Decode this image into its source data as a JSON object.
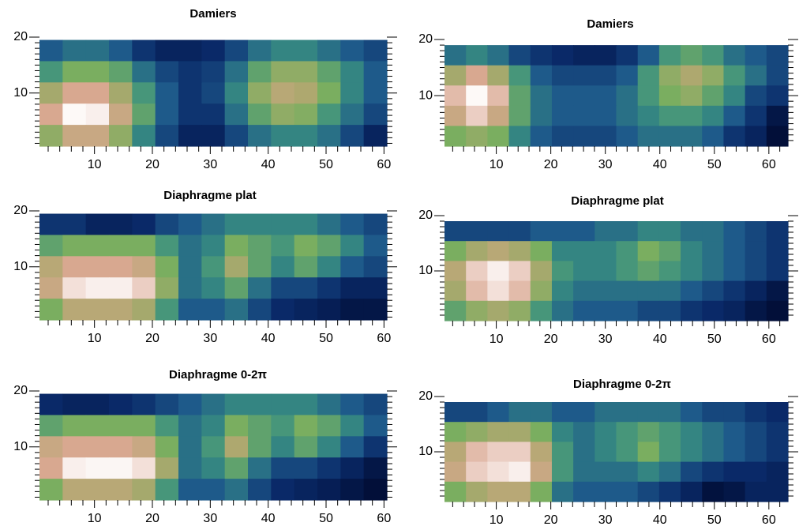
{
  "chart_data": [
    {
      "type": "heatmap",
      "title": "Damiers",
      "x": [
        2.5,
        6.5,
        10.5,
        14.5,
        18.5,
        22.5,
        26.5,
        30.5,
        34.5,
        38.5,
        42.5,
        46.5,
        50.5,
        54.5,
        58.5
      ],
      "y": [
        17.6,
        13.8,
        10,
        6.2,
        2.4
      ],
      "z": [
        [
          0.25,
          0.3,
          0.3,
          0.25,
          0.15,
          0.1,
          0.1,
          0.12,
          0.2,
          0.3,
          0.35,
          0.35,
          0.3,
          0.25,
          0.2
        ],
        [
          0.4,
          0.5,
          0.5,
          0.45,
          0.3,
          0.2,
          0.15,
          0.18,
          0.3,
          0.45,
          0.55,
          0.55,
          0.45,
          0.35,
          0.25
        ],
        [
          0.6,
          0.75,
          0.75,
          0.6,
          0.4,
          0.25,
          0.15,
          0.2,
          0.35,
          0.55,
          0.65,
          0.62,
          0.5,
          0.35,
          0.25
        ],
        [
          0.75,
          0.98,
          0.95,
          0.7,
          0.45,
          0.25,
          0.15,
          0.15,
          0.3,
          0.45,
          0.55,
          0.52,
          0.4,
          0.3,
          0.2
        ],
        [
          0.55,
          0.7,
          0.7,
          0.55,
          0.35,
          0.2,
          0.1,
          0.1,
          0.2,
          0.3,
          0.35,
          0.35,
          0.3,
          0.2,
          0.1
        ]
      ],
      "zlim": [
        0,
        1
      ],
      "colorscale": [
        "#000a30",
        "#0a2a6a",
        "#1e5a8a",
        "#3a9080",
        "#7aae60",
        "#b0a870",
        "#d8a890",
        "#f0d8d0",
        "#ffffff"
      ],
      "xlim": [
        0.5,
        60.5
      ],
      "ylim": [
        0.5,
        20
      ],
      "xticks": [
        10,
        20,
        30,
        40,
        50,
        60
      ],
      "yticks": [
        10,
        20
      ],
      "xminor": [
        2,
        4,
        6,
        8,
        12,
        14,
        16,
        18,
        22,
        24,
        26,
        28,
        32,
        34,
        36,
        38,
        42,
        44,
        46,
        48,
        52,
        54,
        56,
        58
      ],
      "yminor": [
        1,
        2,
        3,
        4,
        5,
        6,
        7,
        8,
        9,
        11,
        12,
        13,
        14,
        15,
        16,
        17,
        18,
        19
      ]
    },
    {
      "type": "heatmap",
      "title": "Damiers",
      "x": [
        2.47,
        6.41,
        10.34,
        14.28,
        18.22,
        22.16,
        26.09,
        30.03,
        33.97,
        37.91,
        41.84,
        45.78,
        49.72,
        53.66,
        57.59,
        61.53
      ],
      "y": [
        17.2,
        13.6,
        10,
        6.4,
        2.8
      ],
      "z": [
        [
          0.3,
          0.35,
          0.3,
          0.2,
          0.15,
          0.12,
          0.1,
          0.1,
          0.15,
          0.25,
          0.4,
          0.45,
          0.4,
          0.3,
          0.25,
          0.2
        ],
        [
          0.6,
          0.75,
          0.6,
          0.4,
          0.25,
          0.2,
          0.2,
          0.2,
          0.25,
          0.4,
          0.55,
          0.62,
          0.55,
          0.4,
          0.3,
          0.2
        ],
        [
          0.8,
          0.98,
          0.8,
          0.45,
          0.3,
          0.25,
          0.25,
          0.25,
          0.3,
          0.4,
          0.5,
          0.55,
          0.45,
          0.35,
          0.2,
          0.15
        ],
        [
          0.7,
          0.85,
          0.7,
          0.45,
          0.3,
          0.25,
          0.25,
          0.25,
          0.3,
          0.35,
          0.4,
          0.4,
          0.35,
          0.25,
          0.15,
          0.05
        ],
        [
          0.5,
          0.55,
          0.5,
          0.35,
          0.25,
          0.2,
          0.2,
          0.2,
          0.25,
          0.3,
          0.3,
          0.3,
          0.25,
          0.15,
          0.1,
          0.02
        ]
      ],
      "zlim": [
        0,
        1
      ],
      "colorscale": [
        "#000a30",
        "#0a2a6a",
        "#1e5a8a",
        "#3a9080",
        "#7aae60",
        "#b0a870",
        "#d8a890",
        "#f0d8d0",
        "#ffffff"
      ],
      "xlim": [
        0.5,
        63.5
      ],
      "ylim": [
        1,
        20
      ],
      "xticks": [
        10,
        20,
        30,
        40,
        50,
        60
      ],
      "yticks": [
        10,
        20
      ],
      "xminor": [
        2,
        4,
        6,
        8,
        12,
        14,
        16,
        18,
        22,
        24,
        26,
        28,
        32,
        34,
        36,
        38,
        42,
        44,
        46,
        48,
        52,
        54,
        56,
        58,
        62
      ],
      "yminor": [
        2,
        3,
        4,
        5,
        6,
        7,
        8,
        9,
        11,
        12,
        13,
        14,
        15,
        16,
        17,
        18,
        19
      ]
    },
    {
      "type": "heatmap",
      "title": "Diaphragme plat",
      "x": [
        2.5,
        6.5,
        10.5,
        14.5,
        18.5,
        22.5,
        26.5,
        30.5,
        34.5,
        38.5,
        42.5,
        46.5,
        50.5,
        54.5,
        58.5
      ],
      "y": [
        17.6,
        13.8,
        10,
        6.2,
        2.4
      ],
      "z": [
        [
          0.15,
          0.15,
          0.1,
          0.1,
          0.12,
          0.2,
          0.25,
          0.3,
          0.35,
          0.35,
          0.35,
          0.35,
          0.3,
          0.25,
          0.2
        ],
        [
          0.45,
          0.5,
          0.5,
          0.5,
          0.5,
          0.4,
          0.3,
          0.35,
          0.5,
          0.45,
          0.4,
          0.5,
          0.45,
          0.35,
          0.25
        ],
        [
          0.65,
          0.75,
          0.75,
          0.75,
          0.7,
          0.5,
          0.3,
          0.4,
          0.6,
          0.45,
          0.35,
          0.45,
          0.35,
          0.25,
          0.2
        ],
        [
          0.7,
          0.9,
          0.95,
          0.95,
          0.85,
          0.55,
          0.3,
          0.35,
          0.45,
          0.3,
          0.2,
          0.2,
          0.15,
          0.1,
          0.1
        ],
        [
          0.5,
          0.65,
          0.65,
          0.65,
          0.6,
          0.4,
          0.25,
          0.25,
          0.3,
          0.2,
          0.12,
          0.1,
          0.08,
          0.05,
          0.05
        ]
      ],
      "zlim": [
        0,
        1
      ],
      "colorscale": [
        "#000a30",
        "#0a2a6a",
        "#1e5a8a",
        "#3a9080",
        "#7aae60",
        "#b0a870",
        "#d8a890",
        "#f0d8d0",
        "#ffffff"
      ],
      "xlim": [
        0.5,
        60.5
      ],
      "ylim": [
        0.5,
        20
      ],
      "xticks": [
        10,
        20,
        30,
        40,
        50,
        60
      ],
      "yticks": [
        10,
        20
      ],
      "xminor": [
        2,
        4,
        6,
        8,
        12,
        14,
        16,
        18,
        22,
        24,
        26,
        28,
        32,
        34,
        36,
        38,
        42,
        44,
        46,
        48,
        52,
        54,
        56,
        58
      ],
      "yminor": [
        1,
        2,
        3,
        4,
        5,
        6,
        7,
        8,
        9,
        11,
        12,
        13,
        14,
        15,
        16,
        17,
        18,
        19
      ]
    },
    {
      "type": "heatmap",
      "title": "Diaphragme plat",
      "x": [
        2.47,
        6.41,
        10.34,
        14.28,
        18.22,
        22.16,
        26.09,
        30.03,
        33.97,
        37.91,
        41.84,
        45.78,
        49.72,
        53.66,
        57.59,
        61.53
      ],
      "y": [
        17.2,
        13.6,
        10,
        6.4,
        2.8
      ],
      "z": [
        [
          0.2,
          0.2,
          0.2,
          0.2,
          0.25,
          0.25,
          0.25,
          0.3,
          0.3,
          0.35,
          0.35,
          0.3,
          0.3,
          0.25,
          0.2,
          0.15
        ],
        [
          0.5,
          0.6,
          0.65,
          0.6,
          0.5,
          0.35,
          0.35,
          0.35,
          0.4,
          0.5,
          0.45,
          0.35,
          0.3,
          0.25,
          0.2,
          0.15
        ],
        [
          0.65,
          0.85,
          0.95,
          0.85,
          0.6,
          0.4,
          0.35,
          0.35,
          0.4,
          0.45,
          0.4,
          0.35,
          0.3,
          0.25,
          0.2,
          0.15
        ],
        [
          0.6,
          0.8,
          0.9,
          0.8,
          0.55,
          0.35,
          0.3,
          0.3,
          0.3,
          0.3,
          0.3,
          0.25,
          0.2,
          0.15,
          0.1,
          0.05
        ],
        [
          0.45,
          0.55,
          0.6,
          0.55,
          0.4,
          0.3,
          0.25,
          0.25,
          0.25,
          0.2,
          0.2,
          0.15,
          0.12,
          0.1,
          0.05,
          0.02
        ]
      ],
      "zlim": [
        0,
        1
      ],
      "colorscale": [
        "#000a30",
        "#0a2a6a",
        "#1e5a8a",
        "#3a9080",
        "#7aae60",
        "#b0a870",
        "#d8a890",
        "#f0d8d0",
        "#ffffff"
      ],
      "xlim": [
        0.5,
        63.5
      ],
      "ylim": [
        1,
        20
      ],
      "xticks": [
        10,
        20,
        30,
        40,
        50,
        60
      ],
      "yticks": [
        10,
        20
      ],
      "xminor": [
        2,
        4,
        6,
        8,
        12,
        14,
        16,
        18,
        22,
        24,
        26,
        28,
        32,
        34,
        36,
        38,
        42,
        44,
        46,
        48,
        52,
        54,
        56,
        58,
        62
      ],
      "yminor": [
        2,
        3,
        4,
        5,
        6,
        7,
        8,
        9,
        11,
        12,
        13,
        14,
        15,
        16,
        17,
        18,
        19
      ]
    },
    {
      "type": "heatmap",
      "title": "Diaphragme 0-2π",
      "x": [
        2.5,
        6.5,
        10.5,
        14.5,
        18.5,
        22.5,
        26.5,
        30.5,
        34.5,
        38.5,
        42.5,
        46.5,
        50.5,
        54.5,
        58.5
      ],
      "y": [
        17.6,
        13.8,
        10,
        6.2,
        2.4
      ],
      "z": [
        [
          0.12,
          0.1,
          0.1,
          0.12,
          0.15,
          0.2,
          0.25,
          0.3,
          0.35,
          0.35,
          0.35,
          0.35,
          0.3,
          0.25,
          0.2
        ],
        [
          0.45,
          0.5,
          0.5,
          0.5,
          0.5,
          0.4,
          0.3,
          0.35,
          0.5,
          0.45,
          0.4,
          0.5,
          0.45,
          0.35,
          0.25
        ],
        [
          0.7,
          0.75,
          0.75,
          0.75,
          0.7,
          0.5,
          0.3,
          0.4,
          0.62,
          0.45,
          0.35,
          0.45,
          0.35,
          0.25,
          0.15
        ],
        [
          0.75,
          0.95,
          0.97,
          0.97,
          0.9,
          0.6,
          0.3,
          0.35,
          0.45,
          0.3,
          0.2,
          0.2,
          0.15,
          0.1,
          0.05
        ],
        [
          0.5,
          0.65,
          0.65,
          0.65,
          0.6,
          0.4,
          0.25,
          0.25,
          0.3,
          0.2,
          0.12,
          0.1,
          0.08,
          0.05,
          0.02
        ]
      ],
      "zlim": [
        0,
        1
      ],
      "colorscale": [
        "#000a30",
        "#0a2a6a",
        "#1e5a8a",
        "#3a9080",
        "#7aae60",
        "#b0a870",
        "#d8a890",
        "#f0d8d0",
        "#ffffff"
      ],
      "xlim": [
        0.5,
        60.5
      ],
      "ylim": [
        0.5,
        20
      ],
      "xticks": [
        10,
        20,
        30,
        40,
        50,
        60
      ],
      "yticks": [
        10,
        20
      ],
      "xminor": [
        2,
        4,
        6,
        8,
        12,
        14,
        16,
        18,
        22,
        24,
        26,
        28,
        32,
        34,
        36,
        38,
        42,
        44,
        46,
        48,
        52,
        54,
        56,
        58
      ],
      "yminor": [
        1,
        2,
        3,
        4,
        5,
        6,
        7,
        8,
        9,
        11,
        12,
        13,
        14,
        15,
        16,
        17,
        18,
        19
      ]
    },
    {
      "type": "heatmap",
      "title": "Diaphragme 0-2π",
      "x": [
        2.47,
        6.41,
        10.34,
        14.28,
        18.22,
        22.16,
        26.09,
        30.03,
        33.97,
        37.91,
        41.84,
        45.78,
        49.72,
        53.66,
        57.59,
        61.53
      ],
      "y": [
        17.2,
        13.6,
        10,
        6.4,
        2.8
      ],
      "z": [
        [
          0.2,
          0.2,
          0.25,
          0.3,
          0.3,
          0.25,
          0.25,
          0.3,
          0.3,
          0.3,
          0.3,
          0.25,
          0.2,
          0.2,
          0.15,
          0.12
        ],
        [
          0.5,
          0.55,
          0.6,
          0.6,
          0.5,
          0.35,
          0.3,
          0.35,
          0.4,
          0.45,
          0.4,
          0.35,
          0.3,
          0.25,
          0.2,
          0.15
        ],
        [
          0.65,
          0.8,
          0.85,
          0.85,
          0.65,
          0.4,
          0.3,
          0.35,
          0.4,
          0.5,
          0.4,
          0.35,
          0.3,
          0.25,
          0.2,
          0.15
        ],
        [
          0.7,
          0.85,
          0.9,
          0.95,
          0.7,
          0.4,
          0.3,
          0.3,
          0.3,
          0.35,
          0.3,
          0.2,
          0.15,
          0.12,
          0.12,
          0.1
        ],
        [
          0.5,
          0.6,
          0.65,
          0.65,
          0.5,
          0.3,
          0.25,
          0.25,
          0.25,
          0.2,
          0.15,
          0.1,
          0.03,
          0.05,
          0.1,
          0.1
        ]
      ],
      "zlim": [
        0,
        1
      ],
      "colorscale": [
        "#000a30",
        "#0a2a6a",
        "#1e5a8a",
        "#3a9080",
        "#7aae60",
        "#b0a870",
        "#d8a890",
        "#f0d8d0",
        "#ffffff"
      ],
      "xlim": [
        0.5,
        63.5
      ],
      "ylim": [
        1,
        20
      ],
      "xticks": [
        10,
        20,
        30,
        40,
        50,
        60
      ],
      "yticks": [
        10,
        20
      ],
      "xminor": [
        2,
        4,
        6,
        8,
        12,
        14,
        16,
        18,
        22,
        24,
        26,
        28,
        32,
        34,
        36,
        38,
        42,
        44,
        46,
        48,
        52,
        54,
        56,
        58,
        62
      ],
      "yminor": [
        2,
        3,
        4,
        5,
        6,
        7,
        8,
        9,
        11,
        12,
        13,
        14,
        15,
        16,
        17,
        18,
        19
      ]
    }
  ]
}
